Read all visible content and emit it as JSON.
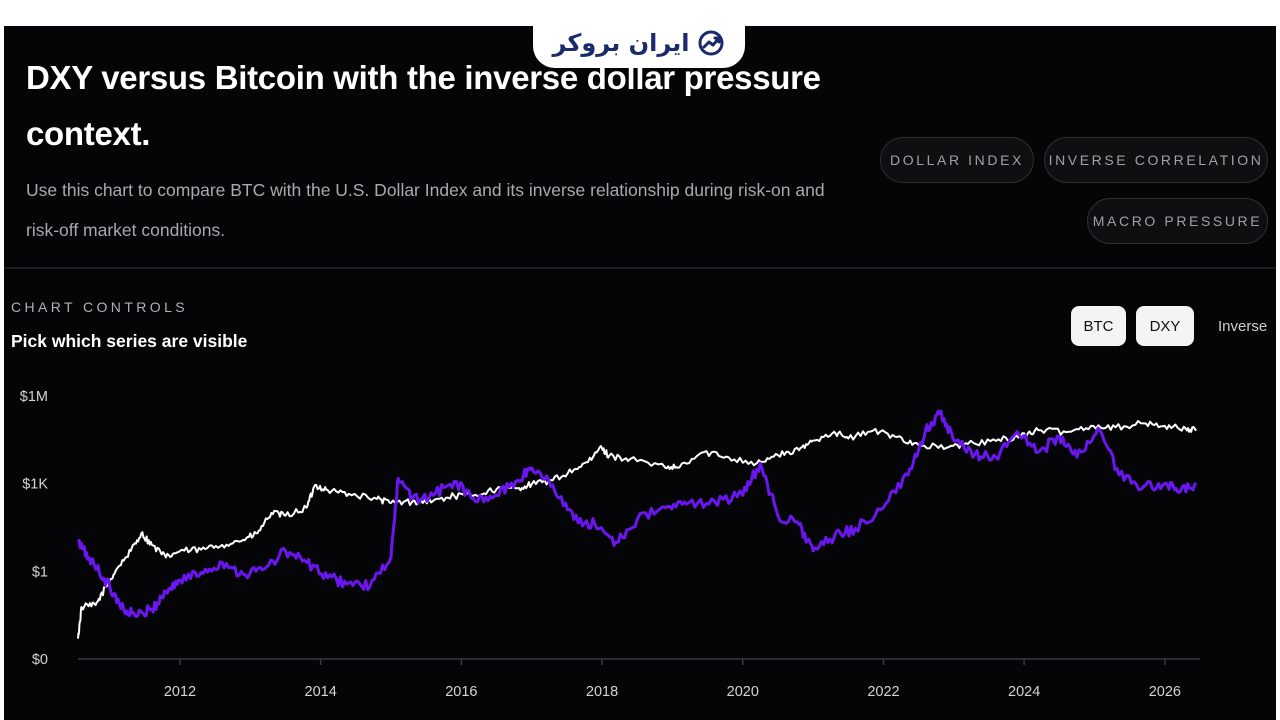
{
  "brand": {
    "logo_text": "ایران بروکر"
  },
  "header": {
    "title": "DXY versus Bitcoin with the inverse dollar pressure context.",
    "subtitle": "Use this chart to compare BTC with the U.S. Dollar Index and its inverse relationship during risk-on and risk-off market conditions.",
    "tags": [
      "DOLLAR INDEX",
      "INVERSE CORRELATION",
      "MACRO PRESSURE"
    ]
  },
  "controls": {
    "label": "CHART CONTROLS",
    "subtitle": "Pick which series are visible",
    "toggles": [
      {
        "label": "BTC",
        "active": true
      },
      {
        "label": "DXY",
        "active": true
      },
      {
        "label": "Inverse",
        "active": false
      }
    ]
  },
  "chart_data": {
    "type": "line",
    "y_scale": "log",
    "y_ticks": [
      "$1M",
      "$1K",
      "$1",
      "$0"
    ],
    "x_ticks": [
      "2012",
      "2014",
      "2016",
      "2018",
      "2020",
      "2022",
      "2024",
      "2026"
    ],
    "xlim": [
      2010.55,
      2026.5
    ],
    "grid": false,
    "colors": {
      "white_series": "#ffffff",
      "purple_series": "#6a16ee",
      "axis": "#3a3a40",
      "tick_text": "#d4d4d8"
    },
    "series": [
      {
        "color": "#ffffff",
        "points": [
          [
            2010.55,
            0.005
          ],
          [
            2010.6,
            0.06
          ],
          [
            2010.8,
            0.07
          ],
          [
            2010.95,
            0.3
          ],
          [
            2011.1,
            1.2
          ],
          [
            2011.3,
            5
          ],
          [
            2011.45,
            20
          ],
          [
            2011.6,
            8
          ],
          [
            2011.8,
            3
          ],
          [
            2012.0,
            5
          ],
          [
            2012.3,
            5.5
          ],
          [
            2012.6,
            8
          ],
          [
            2012.9,
            12
          ],
          [
            2013.1,
            20
          ],
          [
            2013.3,
            100
          ],
          [
            2013.5,
            80
          ],
          [
            2013.8,
            150
          ],
          [
            2013.92,
            900
          ],
          [
            2014.1,
            600
          ],
          [
            2014.4,
            450
          ],
          [
            2014.8,
            300
          ],
          [
            2015.0,
            220
          ],
          [
            2015.3,
            240
          ],
          [
            2015.6,
            260
          ],
          [
            2015.9,
            380
          ],
          [
            2016.2,
            420
          ],
          [
            2016.5,
            650
          ],
          [
            2016.8,
            700
          ],
          [
            2017.0,
            950
          ],
          [
            2017.3,
            1300
          ],
          [
            2017.6,
            3000
          ],
          [
            2017.85,
            6500
          ],
          [
            2017.97,
            18000
          ],
          [
            2018.1,
            9000
          ],
          [
            2018.4,
            7000
          ],
          [
            2018.9,
            3500
          ],
          [
            2019.1,
            3600
          ],
          [
            2019.45,
            12000
          ],
          [
            2019.8,
            8000
          ],
          [
            2020.2,
            5000
          ],
          [
            2020.5,
            9500
          ],
          [
            2020.8,
            14000
          ],
          [
            2021.0,
            30000
          ],
          [
            2021.3,
            60000
          ],
          [
            2021.5,
            35000
          ],
          [
            2021.85,
            65000
          ],
          [
            2022.2,
            40000
          ],
          [
            2022.5,
            21000
          ],
          [
            2022.9,
            17000
          ],
          [
            2023.2,
            23000
          ],
          [
            2023.6,
            29000
          ],
          [
            2023.95,
            43000
          ],
          [
            2024.2,
            68000
          ],
          [
            2024.6,
            58000
          ],
          [
            2024.95,
            95000
          ],
          [
            2025.3,
            85000
          ],
          [
            2025.7,
            115000
          ],
          [
            2026.0,
            95000
          ],
          [
            2026.3,
            75000
          ],
          [
            2026.45,
            68000
          ]
        ]
      },
      {
        "color": "#6a16ee",
        "points": [
          [
            2010.55,
            10
          ],
          [
            2010.7,
            3
          ],
          [
            2010.85,
            1
          ],
          [
            2011.0,
            0.3
          ],
          [
            2011.2,
            0.05
          ],
          [
            2011.4,
            0.03
          ],
          [
            2011.6,
            0.05
          ],
          [
            2011.8,
            0.2
          ],
          [
            2012.0,
            0.5
          ],
          [
            2012.3,
            0.9
          ],
          [
            2012.6,
            2
          ],
          [
            2012.9,
            0.8
          ],
          [
            2013.2,
            1.2
          ],
          [
            2013.5,
            5
          ],
          [
            2013.8,
            2
          ],
          [
            2014.1,
            0.6
          ],
          [
            2014.4,
            0.4
          ],
          [
            2014.7,
            0.3
          ],
          [
            2015.0,
            3
          ],
          [
            2015.1,
            1500
          ],
          [
            2015.3,
            300
          ],
          [
            2015.6,
            400
          ],
          [
            2015.9,
            1200
          ],
          [
            2016.2,
            250
          ],
          [
            2016.5,
            400
          ],
          [
            2016.8,
            1300
          ],
          [
            2017.0,
            3500
          ],
          [
            2017.3,
            900
          ],
          [
            2017.6,
            60
          ],
          [
            2017.9,
            40
          ],
          [
            2018.2,
            10
          ],
          [
            2018.5,
            60
          ],
          [
            2018.9,
            150
          ],
          [
            2019.2,
            200
          ],
          [
            2019.6,
            250
          ],
          [
            2020.0,
            400
          ],
          [
            2020.25,
            5000
          ],
          [
            2020.5,
            80
          ],
          [
            2020.8,
            40
          ],
          [
            2021.0,
            5
          ],
          [
            2021.3,
            15
          ],
          [
            2021.6,
            30
          ],
          [
            2022.0,
            150
          ],
          [
            2022.35,
            2000
          ],
          [
            2022.6,
            70000
          ],
          [
            2022.8,
            250000
          ],
          [
            2023.0,
            30000
          ],
          [
            2023.3,
            10000
          ],
          [
            2023.6,
            8000
          ],
          [
            2023.9,
            60000
          ],
          [
            2024.2,
            12000
          ],
          [
            2024.5,
            40000
          ],
          [
            2024.75,
            8000
          ],
          [
            2025.05,
            80000
          ],
          [
            2025.35,
            2000
          ],
          [
            2025.7,
            800
          ],
          [
            2026.0,
            1000
          ],
          [
            2026.2,
            500
          ],
          [
            2026.45,
            1000
          ]
        ]
      }
    ]
  }
}
